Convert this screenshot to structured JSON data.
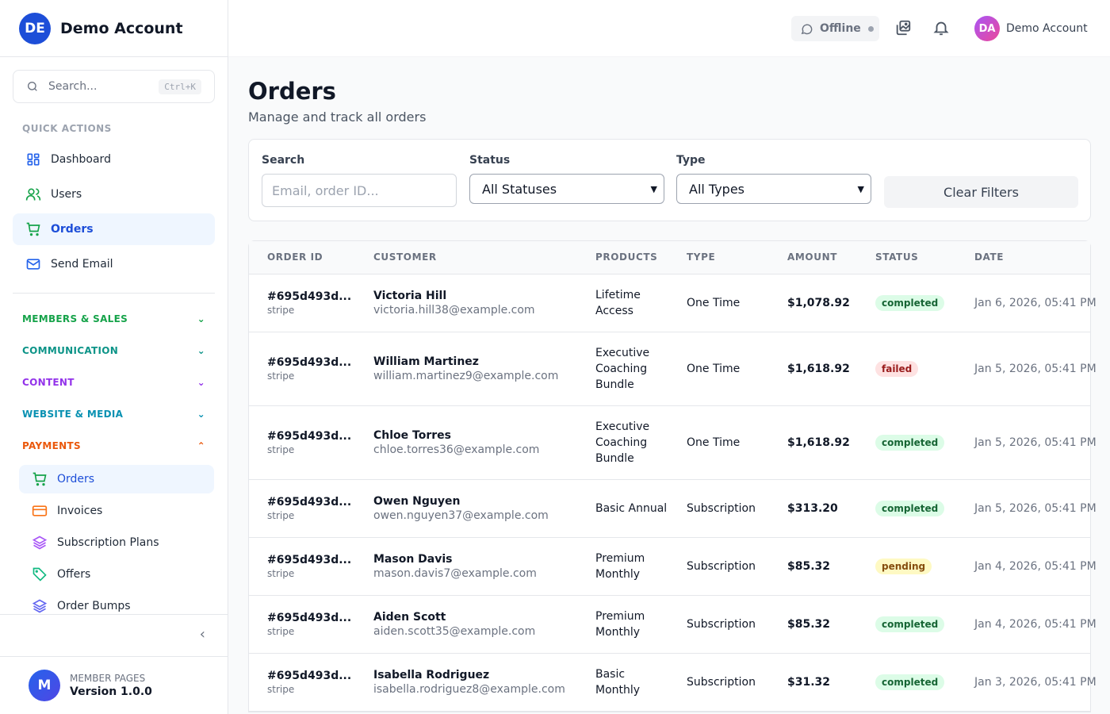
{
  "sidebar": {
    "brand": {
      "initials": "DE",
      "name": "Demo Account"
    },
    "search": {
      "placeholder": "Search...",
      "shortcut": "Ctrl+K"
    },
    "quick_actions_label": "QUICK ACTIONS",
    "quick_actions": [
      {
        "label": "Dashboard",
        "icon": "dashboard-icon"
      },
      {
        "label": "Users",
        "icon": "users-icon"
      },
      {
        "label": "Orders",
        "icon": "cart-icon",
        "active": true
      },
      {
        "label": "Send Email",
        "icon": "mail-icon"
      }
    ],
    "groups": [
      {
        "label": "MEMBERS & SALES",
        "color": "#16a34a",
        "expanded": false
      },
      {
        "label": "COMMUNICATION",
        "color": "#0d9488",
        "expanded": false
      },
      {
        "label": "CONTENT",
        "color": "#9333ea",
        "expanded": false
      },
      {
        "label": "WEBSITE & MEDIA",
        "color": "#0891b2",
        "expanded": false
      },
      {
        "label": "PAYMENTS",
        "color": "#ea580c",
        "expanded": true
      }
    ],
    "payments_items": [
      {
        "label": "Orders",
        "icon": "cart-icon",
        "active": true
      },
      {
        "label": "Invoices",
        "icon": "credit-card-icon"
      },
      {
        "label": "Subscription Plans",
        "icon": "layers-icon"
      },
      {
        "label": "Offers",
        "icon": "tag-icon"
      },
      {
        "label": "Order Bumps",
        "icon": "layers-icon"
      }
    ],
    "footer": {
      "initial": "M",
      "label": "MEMBER PAGES",
      "version": "Version 1.0.0"
    }
  },
  "topbar": {
    "status": "Offline",
    "user": {
      "initials": "DA",
      "name": "Demo Account"
    }
  },
  "page": {
    "title": "Orders",
    "subtitle": "Manage and track all orders"
  },
  "filters": {
    "search_label": "Search",
    "search_placeholder": "Email, order ID...",
    "status_label": "Status",
    "status_value": "All Statuses",
    "type_label": "Type",
    "type_value": "All Types",
    "clear_label": "Clear Filters"
  },
  "table": {
    "columns": [
      "ORDER ID",
      "CUSTOMER",
      "PRODUCTS",
      "TYPE",
      "AMOUNT",
      "STATUS",
      "DATE"
    ],
    "rows": [
      {
        "id": "#695d493d...",
        "gateway": "stripe",
        "name": "Victoria Hill",
        "email": "victoria.hill38@example.com",
        "product": "Lifetime Access",
        "type": "One Time",
        "amount": "$1,078.92",
        "status": "completed",
        "date": "Jan 6, 2026, 05:41 PM"
      },
      {
        "id": "#695d493d...",
        "gateway": "stripe",
        "name": "William Martinez",
        "email": "william.martinez9@example.com",
        "product": "Executive Coaching Bundle",
        "type": "One Time",
        "amount": "$1,618.92",
        "status": "failed",
        "date": "Jan 5, 2026, 05:41 PM"
      },
      {
        "id": "#695d493d...",
        "gateway": "stripe",
        "name": "Chloe Torres",
        "email": "chloe.torres36@example.com",
        "product": "Executive Coaching Bundle",
        "type": "One Time",
        "amount": "$1,618.92",
        "status": "completed",
        "date": "Jan 5, 2026, 05:41 PM"
      },
      {
        "id": "#695d493d...",
        "gateway": "stripe",
        "name": "Owen Nguyen",
        "email": "owen.nguyen37@example.com",
        "product": "Basic Annual",
        "type": "Subscription",
        "amount": "$313.20",
        "status": "completed",
        "date": "Jan 5, 2026, 05:41 PM"
      },
      {
        "id": "#695d493d...",
        "gateway": "stripe",
        "name": "Mason Davis",
        "email": "mason.davis7@example.com",
        "product": "Premium Monthly",
        "type": "Subscription",
        "amount": "$85.32",
        "status": "pending",
        "date": "Jan 4, 2026, 05:41 PM"
      },
      {
        "id": "#695d493d...",
        "gateway": "stripe",
        "name": "Aiden Scott",
        "email": "aiden.scott35@example.com",
        "product": "Premium Monthly",
        "type": "Subscription",
        "amount": "$85.32",
        "status": "completed",
        "date": "Jan 4, 2026, 05:41 PM"
      },
      {
        "id": "#695d493d...",
        "gateway": "stripe",
        "name": "Isabella Rodriguez",
        "email": "isabella.rodriguez8@example.com",
        "product": "Basic Monthly",
        "type": "Subscription",
        "amount": "$31.32",
        "status": "completed",
        "date": "Jan 3, 2026, 05:41 PM"
      }
    ]
  },
  "status_colors": {
    "completed": {
      "bg": "#dcfce7",
      "fg": "#166534"
    },
    "failed": {
      "bg": "#fee2e2",
      "fg": "#991b1b"
    },
    "pending": {
      "bg": "#fef9c3",
      "fg": "#854d0e"
    }
  }
}
